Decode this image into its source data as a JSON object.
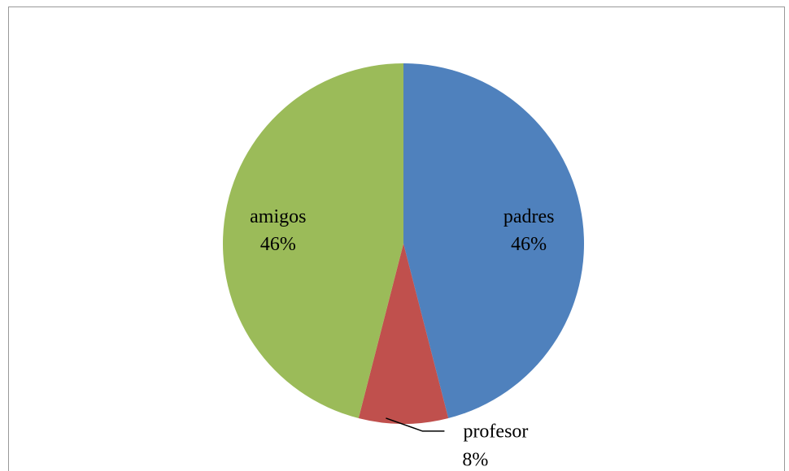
{
  "chart_data": {
    "type": "pie",
    "categories": [
      "padres",
      "profesor",
      "amigos"
    ],
    "values": [
      46,
      8,
      46
    ],
    "value_labels": [
      "46%",
      "8%",
      "46%"
    ],
    "colors": [
      "#4f81bd",
      "#c0504d",
      "#9bbb59"
    ]
  }
}
